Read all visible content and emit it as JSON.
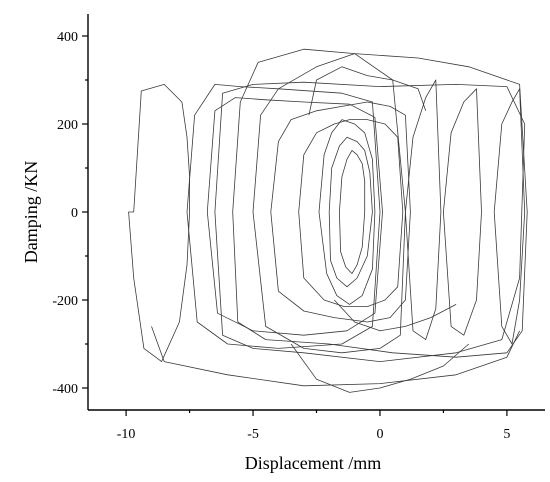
{
  "chart_data": {
    "type": "line",
    "title": "",
    "xlabel": "Displacement /mm",
    "ylabel": "Damping /KN",
    "xlim": [
      -11.5,
      6.5
    ],
    "ylim": [
      -450,
      450
    ],
    "xticks": [
      -10,
      -5,
      0,
      5
    ],
    "xtick_labels": [
      "-10",
      "-5",
      "0",
      "5"
    ],
    "yticks": [
      -400,
      -200,
      0,
      200,
      400
    ],
    "ytick_labels": [
      "-400",
      "-200",
      "0",
      "200",
      "400"
    ],
    "grid": false,
    "legend": "none",
    "line_color": "#3a3a3a",
    "series": [
      {
        "x": [
          -9.7,
          -9.4,
          -8.5,
          -7.8,
          -7.6,
          -7.5,
          -7.5,
          -7.6,
          -7.9,
          -8.6,
          -9.3,
          -9.7,
          -9.9,
          -9.7
        ],
        "y": [
          0,
          275,
          290,
          250,
          170,
          80,
          0,
          -120,
          -250,
          -340,
          -310,
          -150,
          0,
          0
        ]
      },
      {
        "x": [
          -7.6,
          -7.3,
          -6.5,
          -5.5,
          -4.0,
          -1.5,
          -0.3,
          0.0,
          -0.3,
          -1.5,
          -4.0,
          -6.0,
          -7.2,
          -7.6
        ],
        "y": [
          0,
          220,
          290,
          285,
          280,
          270,
          250,
          0,
          -260,
          -300,
          -310,
          -300,
          -250,
          0
        ]
      },
      {
        "x": [
          -6.8,
          -6.5,
          -5.7,
          -4.5,
          -3.0,
          -1.2,
          -0.2,
          0.1,
          -0.2,
          -1.3,
          -3.0,
          -5.0,
          -6.4,
          -6.8
        ],
        "y": [
          0,
          230,
          260,
          255,
          250,
          245,
          215,
          0,
          -230,
          -270,
          -280,
          -270,
          -230,
          0
        ]
      },
      {
        "x": [
          -5.8,
          -5.5,
          -4.8,
          -3.0,
          -1.0,
          1.5,
          3.5,
          5.5,
          5.8,
          5.6,
          5.0,
          3.0,
          0.5,
          -2.0,
          -4.5,
          -5.6,
          -5.8
        ],
        "y": [
          0,
          250,
          340,
          370,
          360,
          350,
          330,
          290,
          0,
          -270,
          -320,
          -330,
          -320,
          -300,
          -290,
          -250,
          0
        ]
      },
      {
        "x": [
          -6.5,
          -6.2,
          -5.0,
          -3.0,
          0.0,
          3.0,
          5.0,
          5.7,
          5.5,
          4.8,
          3.0,
          0.0,
          -3.0,
          -5.0,
          -6.2,
          -6.5
        ],
        "y": [
          0,
          270,
          290,
          295,
          285,
          290,
          285,
          200,
          -150,
          -290,
          -320,
          -340,
          -320,
          -310,
          -280,
          0
        ]
      },
      {
        "x": [
          -5.0,
          -4.7,
          -4.0,
          -2.5,
          -1.0,
          0.5,
          1.0,
          0.8,
          0.0,
          -1.5,
          -3.0,
          -4.5,
          -5.0
        ],
        "y": [
          0,
          220,
          280,
          330,
          360,
          300,
          0,
          -280,
          -310,
          -320,
          -310,
          -260,
          0
        ]
      },
      {
        "x": [
          -4.3,
          -4.0,
          -3.5,
          -2.5,
          -1.5,
          -0.5,
          0.4,
          1.0,
          1.2,
          1.0,
          0.4,
          -0.5,
          -1.8,
          -3.0,
          -4.0,
          -4.3
        ],
        "y": [
          0,
          160,
          210,
          230,
          240,
          250,
          240,
          220,
          0,
          -200,
          -240,
          -250,
          -240,
          -225,
          -180,
          0
        ]
      },
      {
        "x": [
          -3.2,
          -3.0,
          -2.5,
          -1.8,
          -1.2,
          -0.5,
          0.2,
          0.7,
          0.9,
          0.7,
          0.2,
          -0.5,
          -1.4,
          -2.2,
          -3.0,
          -3.2
        ],
        "y": [
          0,
          130,
          180,
          200,
          210,
          210,
          200,
          170,
          0,
          -170,
          -200,
          -215,
          -215,
          -200,
          -150,
          0
        ]
      },
      {
        "x": [
          -2.4,
          -2.2,
          -1.9,
          -1.5,
          -1.0,
          -0.6,
          -0.3,
          -0.2,
          -0.3,
          -0.7,
          -1.2,
          -1.7,
          -2.1,
          -2.4
        ],
        "y": [
          0,
          130,
          180,
          210,
          200,
          180,
          120,
          0,
          -130,
          -190,
          -210,
          -190,
          -140,
          0
        ]
      },
      {
        "x": [
          -2.0,
          -1.9,
          -1.6,
          -1.3,
          -0.9,
          -0.6,
          -0.4,
          -0.3,
          -0.5,
          -0.9,
          -1.3,
          -1.7,
          -1.95,
          -2.0
        ],
        "y": [
          0,
          100,
          150,
          170,
          160,
          140,
          90,
          0,
          -100,
          -150,
          -170,
          -150,
          -110,
          0
        ]
      },
      {
        "x": [
          -1.6,
          -1.5,
          -1.3,
          -1.1,
          -0.9,
          -0.7,
          -0.6,
          -0.6,
          -0.7,
          -0.9,
          -1.1,
          -1.35,
          -1.55,
          -1.6
        ],
        "y": [
          0,
          80,
          120,
          140,
          130,
          110,
          70,
          0,
          -80,
          -120,
          -140,
          -125,
          -90,
          0
        ]
      },
      {
        "x": [
          -9.0,
          -8.5,
          -6.0,
          -3.0,
          0.0,
          3.0,
          5.0,
          5.5
        ],
        "y": [
          -260,
          -340,
          -370,
          -395,
          -390,
          -370,
          -330,
          -270
        ]
      },
      {
        "x": [
          -3.5,
          -2.5,
          -1.2,
          0.0,
          1.2,
          2.5,
          3.5
        ],
        "y": [
          -300,
          -380,
          -410,
          -400,
          -380,
          -350,
          -300
        ]
      },
      {
        "x": [
          4.5,
          4.8,
          5.2,
          5.5,
          5.7,
          5.5,
          5.2,
          4.8,
          4.5
        ],
        "y": [
          0,
          200,
          250,
          280,
          0,
          -200,
          -300,
          -260,
          0
        ]
      },
      {
        "x": [
          2.5,
          2.8,
          3.3,
          3.8,
          4.0,
          3.8,
          3.3,
          2.8,
          2.5
        ],
        "y": [
          0,
          180,
          250,
          280,
          0,
          -200,
          -280,
          -260,
          0
        ]
      },
      {
        "x": [
          1.0,
          1.3,
          1.8,
          2.2,
          2.4,
          2.2,
          1.8,
          1.3,
          1.0
        ],
        "y": [
          0,
          170,
          260,
          300,
          0,
          -220,
          -290,
          -270,
          0
        ]
      },
      {
        "x": [
          -2.8,
          -2.5,
          -1.5,
          -0.5,
          0.5,
          1.5,
          1.8
        ],
        "y": [
          220,
          300,
          330,
          310,
          300,
          280,
          230
        ]
      },
      {
        "x": [
          -1.8,
          -1.0,
          0.0,
          1.0,
          2.0,
          3.0
        ],
        "y": [
          -200,
          -250,
          -270,
          -260,
          -240,
          -210
        ]
      }
    ]
  }
}
